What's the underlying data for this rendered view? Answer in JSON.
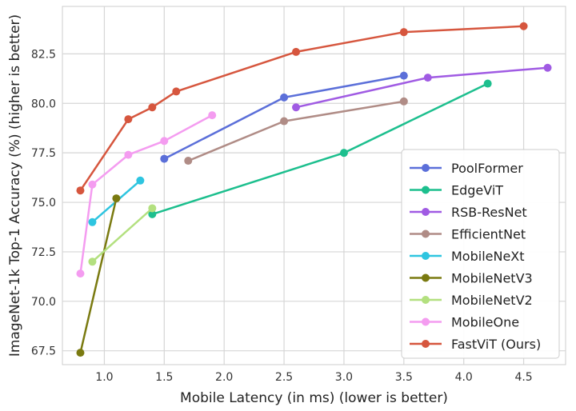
{
  "chart_data": {
    "type": "line",
    "title": "",
    "xlabel": "Mobile Latency (in ms) (lower is better)",
    "ylabel": "ImageNet-1k Top-1 Accuracy (%) (higher is better)",
    "xlim": [
      0.65,
      4.85
    ],
    "ylim": [
      66.8,
      84.9
    ],
    "xticks": [
      1.0,
      1.5,
      2.0,
      2.5,
      3.0,
      3.5,
      4.0,
      4.5
    ],
    "xtick_labels": [
      "1.0",
      "1.5",
      "2.0",
      "2.5",
      "3.0",
      "3.5",
      "4.0",
      "4.5"
    ],
    "yticks": [
      67.5,
      70.0,
      72.5,
      75.0,
      77.5,
      80.0,
      82.5
    ],
    "ytick_labels": [
      "67.5",
      "70.0",
      "72.5",
      "75.0",
      "77.5",
      "80.0",
      "82.5"
    ],
    "grid": true,
    "legend_position": "bottom-right",
    "series": [
      {
        "name": "PoolFormer",
        "color": "#5b6fd9",
        "x": [
          1.5,
          2.5,
          3.5
        ],
        "y": [
          77.2,
          80.3,
          81.4
        ]
      },
      {
        "name": "EdgeViT",
        "color": "#1dbf8e",
        "x": [
          1.4,
          3.0,
          4.2
        ],
        "y": [
          74.4,
          77.5,
          81.0
        ]
      },
      {
        "name": "RSB-ResNet",
        "color": "#a05be3",
        "x": [
          2.6,
          3.7,
          4.7
        ],
        "y": [
          79.8,
          81.3,
          81.8
        ]
      },
      {
        "name": "EfficientNet",
        "color": "#b08c86",
        "x": [
          1.7,
          2.5,
          3.5
        ],
        "y": [
          77.1,
          79.1,
          80.1
        ]
      },
      {
        "name": "MobileNeXt",
        "color": "#2ec5e0",
        "x": [
          0.9,
          1.3
        ],
        "y": [
          74.0,
          76.1
        ]
      },
      {
        "name": "MobileNetV3",
        "color": "#7a7a10",
        "x": [
          0.8,
          1.1
        ],
        "y": [
          67.4,
          75.2
        ]
      },
      {
        "name": "MobileNetV2",
        "color": "#b3e07f",
        "x": [
          0.9,
          1.4
        ],
        "y": [
          72.0,
          74.7
        ]
      },
      {
        "name": "MobileOne",
        "color": "#f49cf0",
        "x": [
          0.8,
          0.9,
          1.2,
          1.5,
          1.9
        ],
        "y": [
          71.4,
          75.9,
          77.4,
          78.1,
          79.4
        ]
      },
      {
        "name": "FastViT (Ours)",
        "color": "#d6563e",
        "x": [
          0.8,
          1.2,
          1.4,
          1.6,
          2.6,
          3.5,
          4.5
        ],
        "y": [
          75.6,
          79.2,
          79.8,
          80.6,
          82.6,
          83.6,
          83.9
        ]
      }
    ]
  }
}
